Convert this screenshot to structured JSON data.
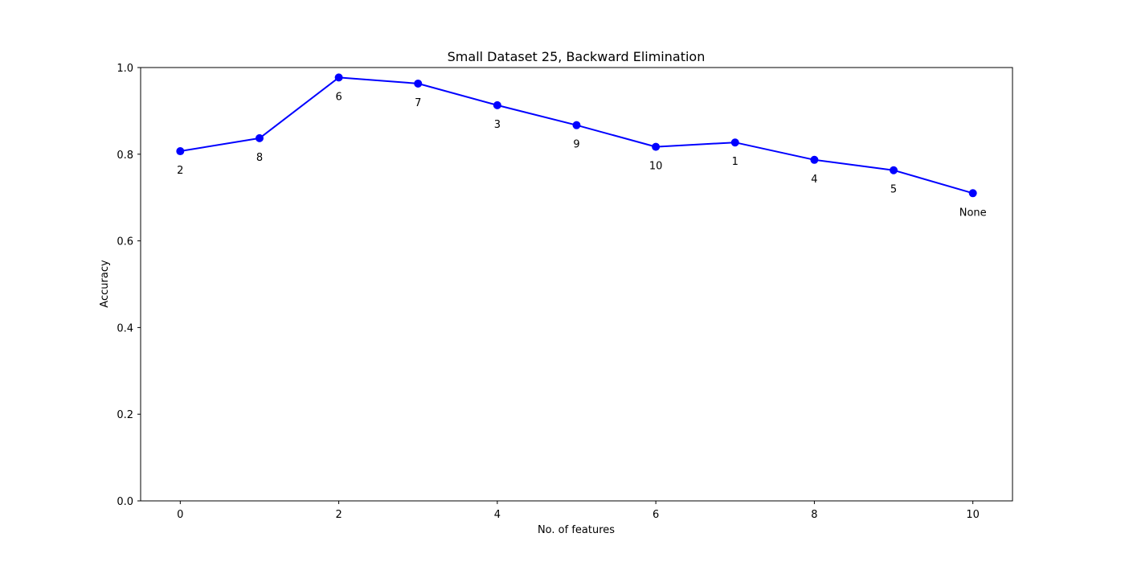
{
  "chart_data": {
    "type": "line",
    "title": "Small Dataset 25, Backward Elimination",
    "xlabel": "No. of features",
    "ylabel": "Accuracy",
    "xlim": [
      -0.5,
      10.5
    ],
    "ylim": [
      0.0,
      1.0
    ],
    "xticks": [
      0,
      2,
      4,
      6,
      8,
      10
    ],
    "xtick_labels": [
      "0",
      "2",
      "4",
      "6",
      "8",
      "10"
    ],
    "yticks": [
      0.0,
      0.2,
      0.4,
      0.6,
      0.8,
      1.0
    ],
    "ytick_labels": [
      "0.0",
      "0.2",
      "0.4",
      "0.6",
      "0.8",
      "1.0"
    ],
    "grid": false,
    "series": [
      {
        "color": "#0000ff",
        "marker": "circle",
        "x": [
          0,
          1,
          2,
          3,
          4,
          5,
          6,
          7,
          8,
          9,
          10
        ],
        "y": [
          0.807,
          0.837,
          0.977,
          0.963,
          0.913,
          0.867,
          0.817,
          0.827,
          0.787,
          0.763,
          0.71
        ],
        "labels": [
          "2",
          "8",
          "6",
          "7",
          "3",
          "9",
          "10",
          "1",
          "4",
          "5",
          "None"
        ]
      }
    ]
  }
}
